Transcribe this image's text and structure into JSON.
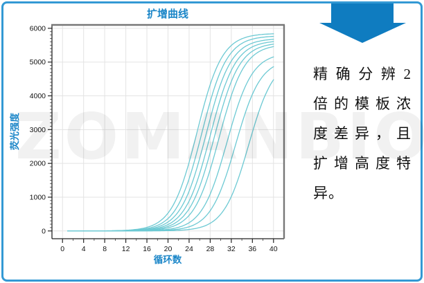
{
  "frame": {
    "border_color": "#3399D4",
    "background": "#FFFFFF"
  },
  "watermark": {
    "text": "ZOMANBIO"
  },
  "chart_data": {
    "type": "line",
    "title": "扩增曲线",
    "xlabel": "循环数",
    "ylabel": "荧光强度",
    "x_ticks": [
      0,
      4,
      8,
      12,
      16,
      20,
      24,
      28,
      32,
      36,
      40
    ],
    "y_ticks": [
      0,
      1000,
      2000,
      3000,
      4000,
      5000,
      6000
    ],
    "xlim": [
      -2,
      42
    ],
    "ylim": [
      -230,
      6100
    ],
    "x_minor_step": 2,
    "y_minor_step": 100,
    "grid": true,
    "legend": "none",
    "curve_color": "#6CC9D3",
    "grid_color": "#E3E3E3",
    "axis_color": "#222222",
    "frame_color": "#777777",
    "title_color": "#1B86C8",
    "x_start": 1,
    "x_end": 40,
    "sigmoid_slope": 0.42,
    "series": [
      {
        "name": "curve-1",
        "midpoint": 25.5,
        "plateau": 5850,
        "value_at_cycle_40": 5837
      },
      {
        "name": "curve-2",
        "midpoint": 26.4,
        "plateau": 5780,
        "value_at_cycle_40": 5761
      },
      {
        "name": "curve-3",
        "midpoint": 27.2,
        "plateau": 5700,
        "value_at_cycle_40": 5674
      },
      {
        "name": "curve-4",
        "midpoint": 28.0,
        "plateau": 5640,
        "value_at_cycle_40": 5604
      },
      {
        "name": "curve-5",
        "midpoint": 28.8,
        "plateau": 5580,
        "value_at_cycle_40": 5527
      },
      {
        "name": "curve-6",
        "midpoint": 29.7,
        "plateau": 5530,
        "value_at_cycle_40": 5458
      },
      {
        "name": "curve-7",
        "midpoint": 31.2,
        "plateau": 5280,
        "value_at_cycle_40": 5150
      },
      {
        "name": "curve-8",
        "midpoint": 32.8,
        "plateau": 5100,
        "value_at_cycle_40": 4860
      },
      {
        "name": "curve-9",
        "midpoint": 35.3,
        "plateau": 5100,
        "value_at_cycle_40": 4470
      }
    ]
  },
  "icons": {
    "down_arrow_color": "#0F7CC0"
  },
  "note": {
    "full_text": "精确分辨2倍的模板浓度差异，且扩增高度特异。",
    "lines": [
      "精确分辨2",
      "倍的模板浓",
      "度差异，且",
      "扩增高度特",
      "异。"
    ]
  }
}
